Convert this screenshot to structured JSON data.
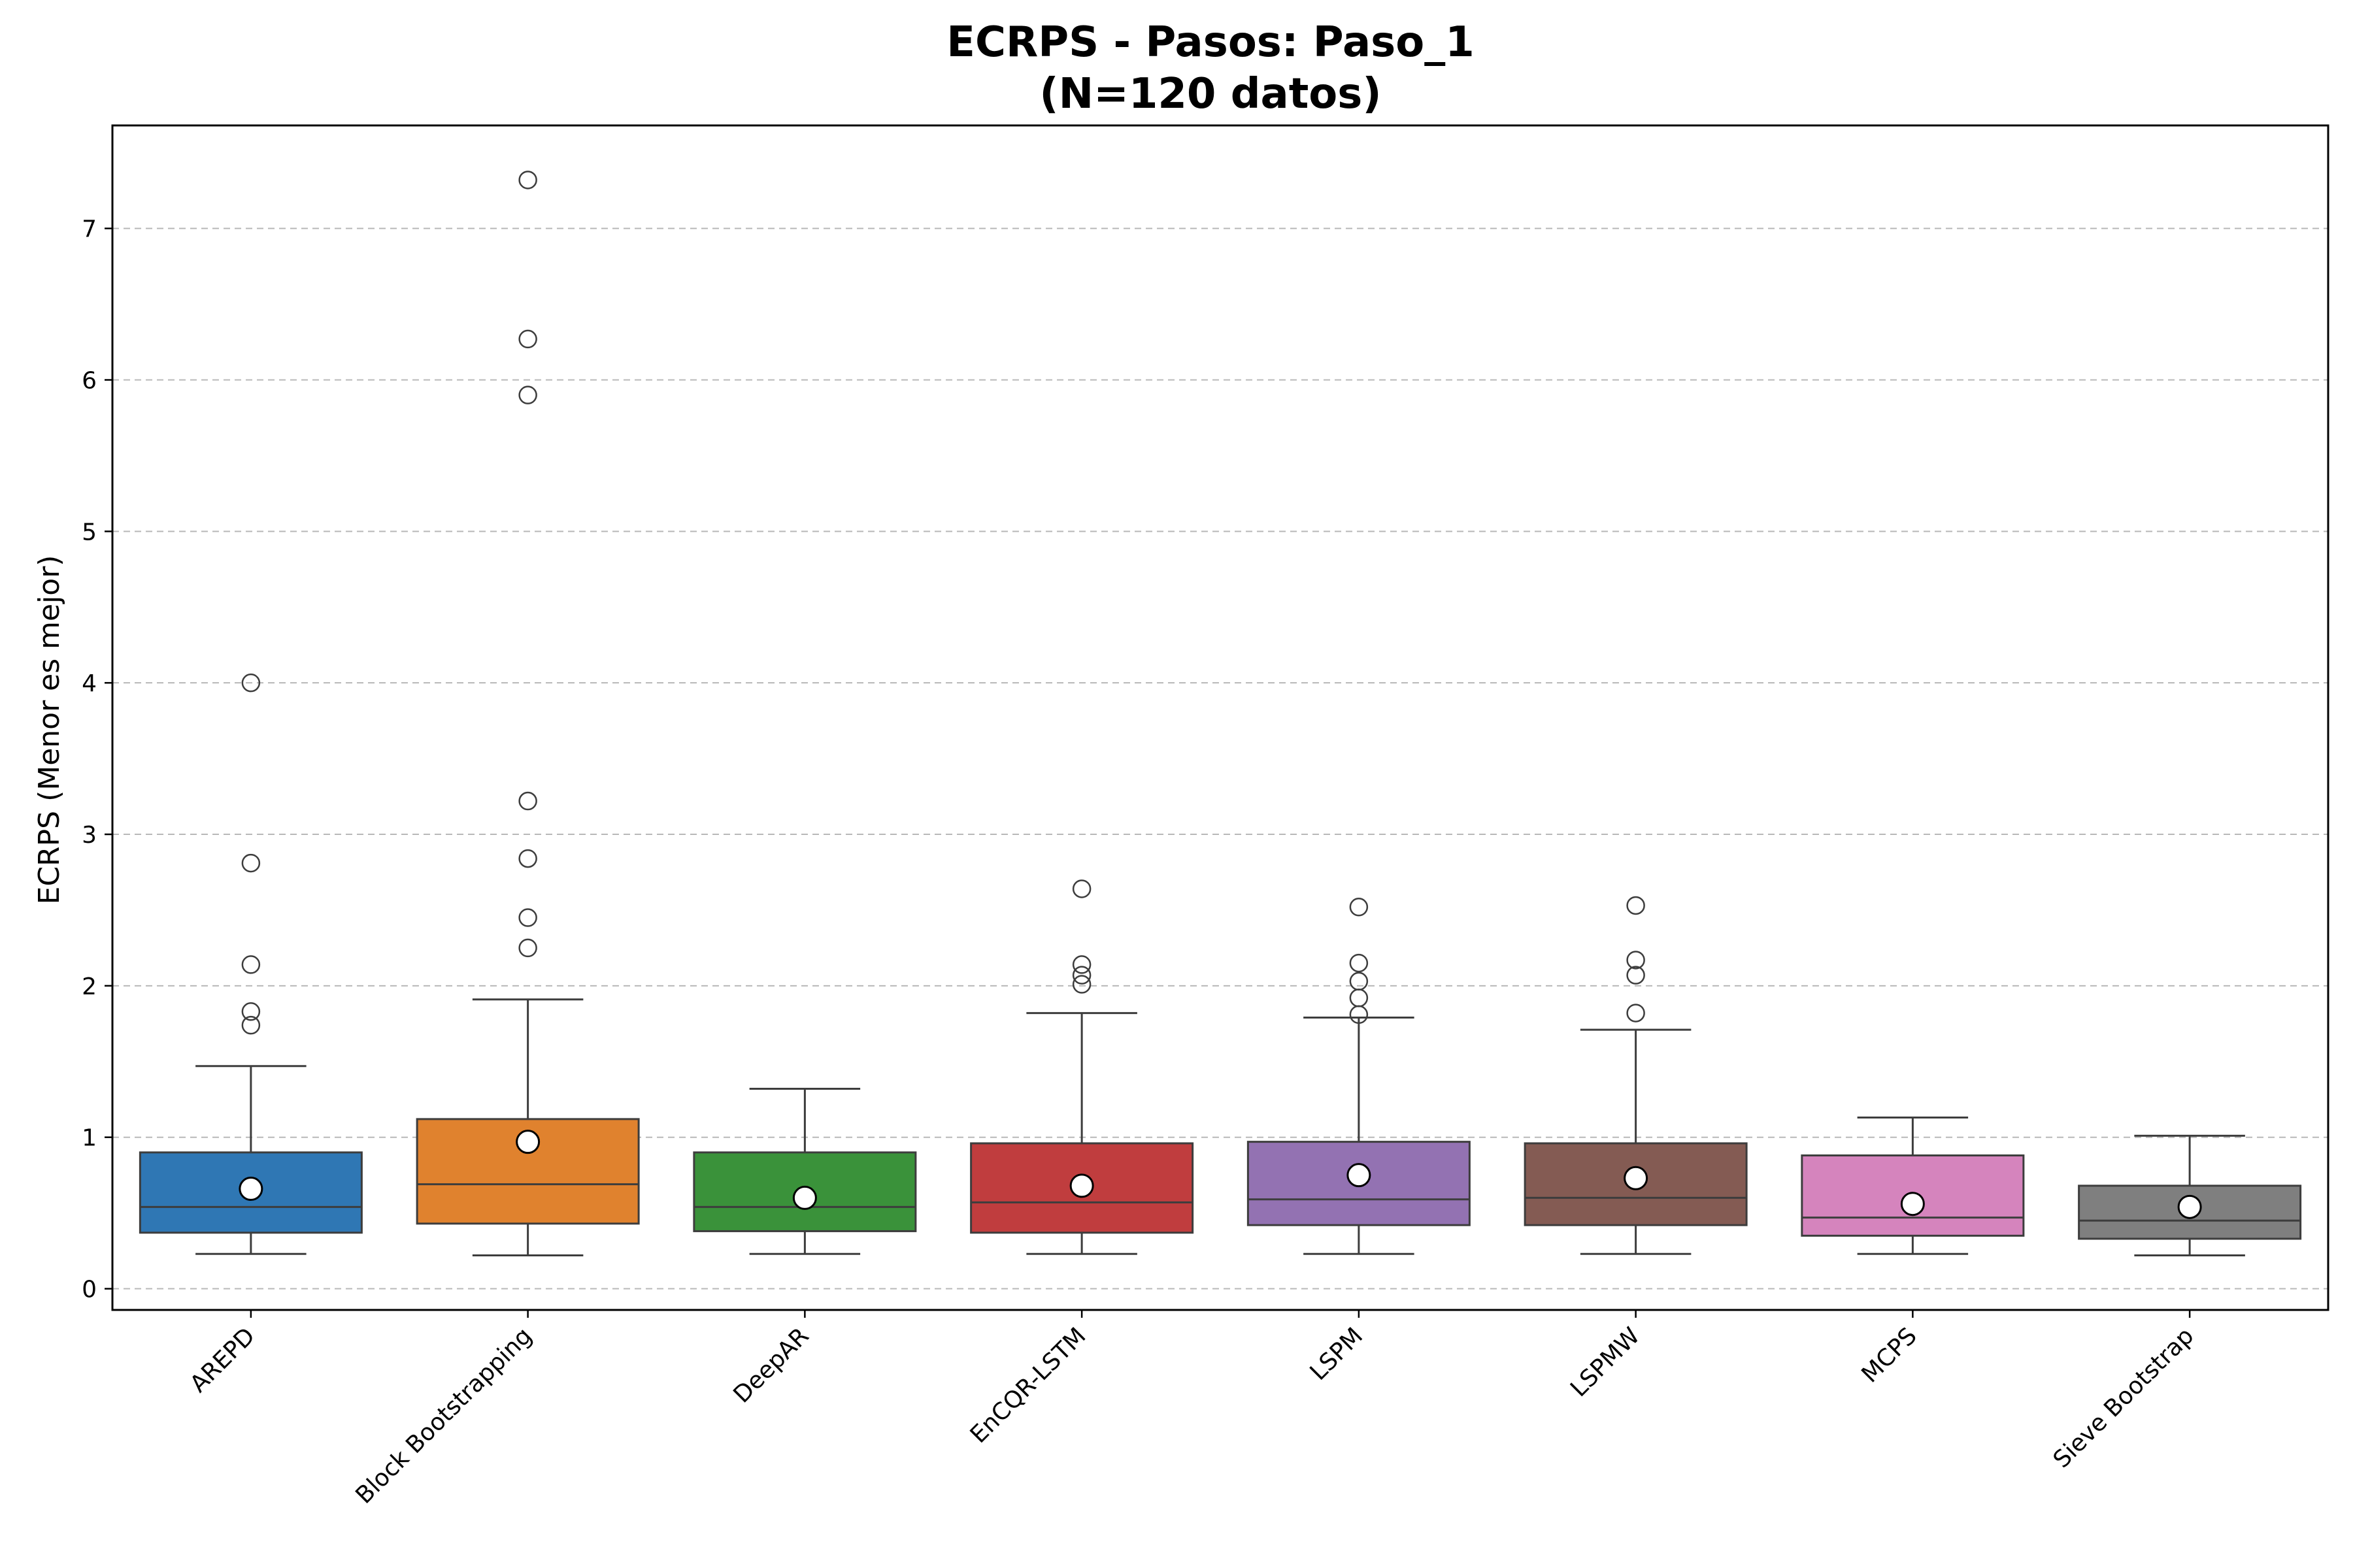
{
  "chart_data": {
    "type": "box",
    "title": "ECRPS - Pasos: Paso_1",
    "subtitle": "(N=120 datos)",
    "xlabel": "",
    "ylabel": "ECRPS (Menor es mejor)",
    "ylim": [
      -0.14,
      7.68
    ],
    "yticks": [
      0,
      1,
      2,
      3,
      4,
      5,
      6,
      7
    ],
    "grid": "horizontal dashed",
    "legend": "none",
    "categories": [
      "AREPD",
      "Block Bootstrapping",
      "DeepAR",
      "EnCQR-LSTM",
      "LSPM",
      "LSPMW",
      "MCPS",
      "Sieve Bootstrap"
    ],
    "series": [
      {
        "color": "#2f77b4",
        "whisker_low": 0.23,
        "q1": 0.37,
        "median": 0.54,
        "q3": 0.9,
        "whisker_high": 1.47,
        "mean": 0.66,
        "outliers": [
          1.74,
          1.83,
          2.14,
          2.81,
          4.0
        ]
      },
      {
        "color": "#e0822e",
        "whisker_low": 0.22,
        "q1": 0.43,
        "median": 0.69,
        "q3": 1.12,
        "whisker_high": 1.91,
        "mean": 0.97,
        "outliers": [
          2.25,
          2.45,
          2.84,
          3.22,
          5.9,
          6.27,
          7.32
        ]
      },
      {
        "color": "#3a923a",
        "whisker_low": 0.23,
        "q1": 0.38,
        "median": 0.54,
        "q3": 0.9,
        "whisker_high": 1.32,
        "mean": 0.6,
        "outliers": []
      },
      {
        "color": "#c03d3e",
        "whisker_low": 0.23,
        "q1": 0.37,
        "median": 0.57,
        "q3": 0.96,
        "whisker_high": 1.82,
        "mean": 0.68,
        "outliers": [
          2.01,
          2.07,
          2.14,
          2.64
        ]
      },
      {
        "color": "#9372b2",
        "whisker_low": 0.23,
        "q1": 0.42,
        "median": 0.59,
        "q3": 0.97,
        "whisker_high": 1.79,
        "mean": 0.75,
        "outliers": [
          1.81,
          1.92,
          2.03,
          2.15,
          2.52
        ]
      },
      {
        "color": "#845b53",
        "whisker_low": 0.23,
        "q1": 0.42,
        "median": 0.6,
        "q3": 0.96,
        "whisker_high": 1.71,
        "mean": 0.73,
        "outliers": [
          1.82,
          2.07,
          2.17,
          2.53
        ]
      },
      {
        "color": "#d584bd",
        "whisker_low": 0.23,
        "q1": 0.35,
        "median": 0.47,
        "q3": 0.88,
        "whisker_high": 1.13,
        "mean": 0.56,
        "outliers": []
      },
      {
        "color": "#7f7f7f",
        "whisker_low": 0.22,
        "q1": 0.33,
        "median": 0.45,
        "q3": 0.68,
        "whisker_high": 1.01,
        "mean": 0.54,
        "outliers": []
      }
    ]
  }
}
